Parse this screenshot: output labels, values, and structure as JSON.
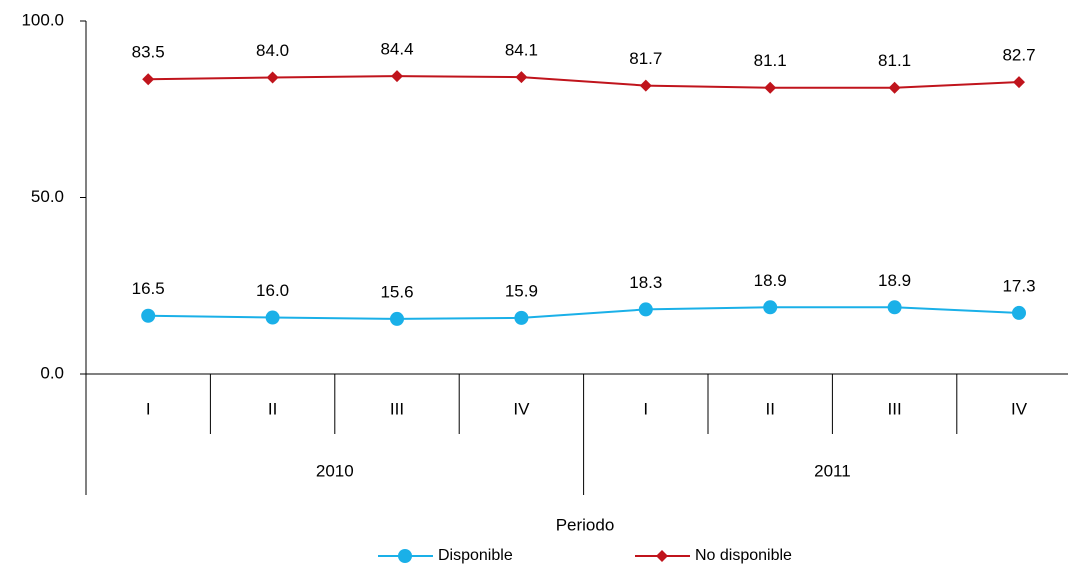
{
  "chart_data": {
    "type": "line",
    "categories": [
      "I",
      "II",
      "III",
      "IV",
      "I",
      "II",
      "III",
      "IV"
    ],
    "groups": [
      "2010",
      "2011"
    ],
    "x_label": "Periodo",
    "ylim": [
      0,
      100
    ],
    "yticks": [
      {
        "value": 0,
        "label": "0.0"
      },
      {
        "value": 50,
        "label": "50.0"
      },
      {
        "value": 100,
        "label": "100.0"
      }
    ],
    "series": [
      {
        "name": "Disponible",
        "color": "#1ab0e8",
        "marker": "circle",
        "values": [
          16.5,
          16.0,
          15.6,
          15.9,
          18.3,
          18.9,
          18.9,
          17.3
        ],
        "value_labels": [
          "16.5",
          "16.0",
          "15.6",
          "15.9",
          "18.3",
          "18.9",
          "18.9",
          "17.3"
        ]
      },
      {
        "name": "No disponible",
        "color": "#c0141c",
        "marker": "diamond",
        "values": [
          83.5,
          84.0,
          84.4,
          84.1,
          81.7,
          81.1,
          81.1,
          82.7
        ],
        "value_labels": [
          "83.5",
          "84.0",
          "84.4",
          "84.1",
          "81.7",
          "81.1",
          "81.1",
          "82.7"
        ]
      }
    ],
    "legend": "bottom"
  }
}
